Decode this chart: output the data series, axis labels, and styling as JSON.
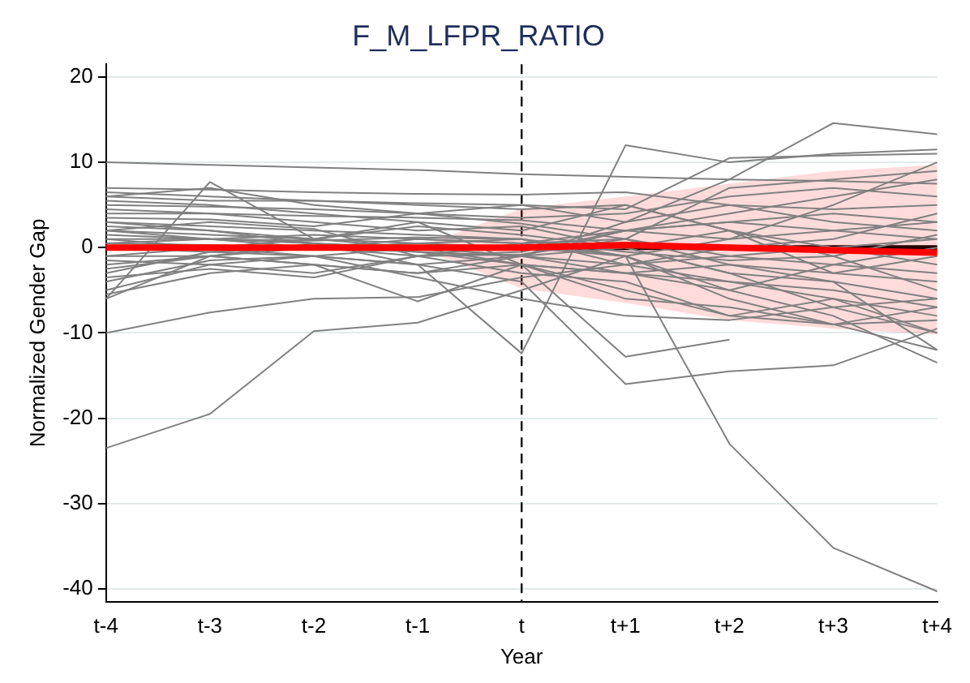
{
  "chart_data": {
    "type": "line",
    "title": "F_M_LFPR_RATIO",
    "xlabel": "Year",
    "ylabel": "Normalized Gender Gap",
    "categories": [
      "t-4",
      "t-3",
      "t-2",
      "t-1",
      "t",
      "t+1",
      "t+2",
      "t+3",
      "t+4"
    ],
    "ylim": [
      -41.5,
      21.5
    ],
    "yticks": [
      -40,
      -30,
      -20,
      -10,
      0,
      10,
      20
    ],
    "grid": "y",
    "legend": false,
    "marker": "none",
    "line_style": "solid",
    "ref_lines": [
      {
        "axis": "y",
        "value": 0,
        "color": "#000000",
        "line_style": "solid"
      },
      {
        "axis": "x",
        "value": "t",
        "color": "#000000",
        "line_style": "dashed"
      }
    ],
    "series": [
      {
        "color": "#808080",
        "values": [
          10,
          9.7,
          9.4,
          9.1,
          8.6,
          8.3,
          8,
          7.8,
          7.5
        ]
      },
      {
        "color": "#808080",
        "values": [
          -23.5,
          -19.5,
          -9.8,
          -8.8,
          -5,
          -1,
          1,
          2,
          3
        ]
      },
      {
        "color": "#808080",
        "values": [
          -10,
          -7.6,
          -6,
          -5.8,
          -3.5,
          -2,
          -1,
          0,
          1
        ]
      },
      {
        "color": "#808080",
        "values": [
          2,
          1.5,
          1,
          0.5,
          0,
          -1,
          -23,
          -35.2,
          -40.3
        ]
      },
      {
        "color": "#808080",
        "values": [
          1,
          0,
          -1,
          -2,
          -12.4,
          12,
          10,
          11,
          11.5
        ]
      },
      {
        "color": "#808080",
        "values": [
          3,
          2,
          0.5,
          -2,
          -4,
          -16,
          -14.5,
          -13.8,
          -9.5
        ]
      },
      {
        "color": "#808080",
        "values": [
          -1,
          -1,
          -2,
          -3,
          -2,
          -12.8,
          -10.8,
          null,
          null
        ]
      },
      {
        "color": "#808080",
        "values": [
          6,
          7,
          5,
          4,
          5,
          3,
          8,
          14.6,
          13.3
        ]
      },
      {
        "color": "#808080",
        "values": [
          -6,
          7.7,
          1,
          0,
          -1,
          2,
          3,
          2,
          1
        ]
      },
      {
        "color": "#808080",
        "values": [
          7,
          6.8,
          6.5,
          6.3,
          6.2,
          6.5,
          5,
          4.5,
          5
        ]
      },
      {
        "color": "#808080",
        "values": [
          6,
          5.5,
          5.5,
          5.2,
          5,
          4.5,
          10.5,
          10.8,
          11
        ]
      },
      {
        "color": "#808080",
        "values": [
          5,
          4.8,
          4.5,
          4,
          3.5,
          4,
          6,
          7,
          6
        ]
      },
      {
        "color": "#808080",
        "values": [
          4,
          4,
          3.7,
          3.5,
          3.2,
          2,
          3,
          4,
          3
        ]
      },
      {
        "color": "#808080",
        "values": [
          3.5,
          3.3,
          2.5,
          4,
          2.8,
          1,
          -2,
          -3,
          -1
        ]
      },
      {
        "color": "#808080",
        "values": [
          3,
          2.5,
          2,
          1.5,
          1,
          -2,
          -4,
          -6,
          -8
        ]
      },
      {
        "color": "#808080",
        "values": [
          2,
          1,
          0.5,
          -0.5,
          -2,
          -5,
          -8,
          -9,
          -12
        ]
      },
      {
        "color": "#808080",
        "values": [
          -5,
          -2,
          -3,
          -1,
          -3,
          -4,
          -8,
          -6,
          -10
        ]
      },
      {
        "color": "#808080",
        "values": [
          -6,
          -1,
          0,
          -0.5,
          -1,
          -3,
          -5,
          -8,
          -13.5
        ]
      },
      {
        "color": "#808080",
        "values": [
          -3,
          -0.5,
          0,
          1,
          0.5,
          1,
          -1,
          -2,
          -3
        ]
      },
      {
        "color": "#808080",
        "values": [
          1.5,
          1,
          1.5,
          1,
          0.5,
          2,
          4,
          6,
          8
        ]
      },
      {
        "color": "#808080",
        "values": [
          0.5,
          0.3,
          0,
          0.5,
          1,
          -1,
          -6,
          -9,
          -7
        ]
      },
      {
        "color": "#808080",
        "values": [
          -2,
          -1,
          0.5,
          0,
          -1,
          0,
          2,
          -1,
          -5
        ]
      },
      {
        "color": "#808080",
        "values": [
          -4,
          -1.5,
          -1,
          -2,
          -1,
          3,
          5,
          3,
          2
        ]
      },
      {
        "color": "#808080",
        "values": [
          2.5,
          2,
          1,
          3,
          2,
          5,
          2,
          0,
          -2
        ]
      },
      {
        "color": "#808080",
        "values": [
          -1,
          0,
          1,
          2.5,
          1.5,
          0,
          -3,
          -4,
          -6
        ]
      },
      {
        "color": "#808080",
        "values": [
          1,
          1,
          0,
          -1,
          -0.5,
          2,
          1,
          5,
          10
        ]
      },
      {
        "color": "#808080",
        "values": [
          -2.5,
          -1,
          -2,
          -3,
          -1,
          -2,
          0,
          1,
          4
        ]
      },
      {
        "color": "#808080",
        "values": [
          4.5,
          4,
          3,
          2,
          2.5,
          0,
          -3,
          -7,
          -10
        ]
      },
      {
        "color": "#808080",
        "values": [
          0,
          -0.5,
          -1,
          -3.5,
          -6,
          -8,
          -8.5,
          -7,
          -6
        ]
      },
      {
        "color": "#808080",
        "values": [
          -3.5,
          -2.5,
          -3.5,
          -1,
          -0.8,
          1,
          7,
          8,
          9
        ]
      },
      {
        "color": "#808080",
        "values": [
          2,
          3,
          2.2,
          -1,
          0.5,
          -1,
          -5,
          -2,
          0
        ]
      },
      {
        "color": "#808080",
        "values": [
          -5.5,
          -3,
          -2,
          -6.3,
          -2,
          -3,
          -2,
          -4,
          -12
        ]
      },
      {
        "color": "#808080",
        "values": [
          6.5,
          6,
          5.5,
          5,
          4.5,
          5,
          2,
          -3,
          -4
        ]
      },
      {
        "color": "#808080",
        "values": [
          0.5,
          1,
          0.8,
          1.2,
          1,
          -0.5,
          -1.5,
          -1,
          1.5
        ]
      },
      {
        "color": "#808080",
        "values": [
          -1.5,
          -2,
          -1,
          0,
          -2,
          -6,
          -7,
          -9,
          -8.5
        ]
      },
      {
        "color": "#808080",
        "values": [
          5.5,
          5,
          4,
          3,
          -2,
          -3,
          -4,
          -5,
          -7
        ]
      },
      {
        "color": "#ff0000",
        "values": [
          0,
          0,
          0,
          0,
          0,
          0.3,
          0,
          -0.3,
          -0.6
        ],
        "lower": [
          null,
          null,
          null,
          0,
          -4.8,
          -6.5,
          -8.5,
          -9.5,
          -10.2
        ],
        "upper": [
          null,
          null,
          null,
          0,
          4.6,
          6,
          7.5,
          9,
          9.7
        ]
      }
    ]
  }
}
